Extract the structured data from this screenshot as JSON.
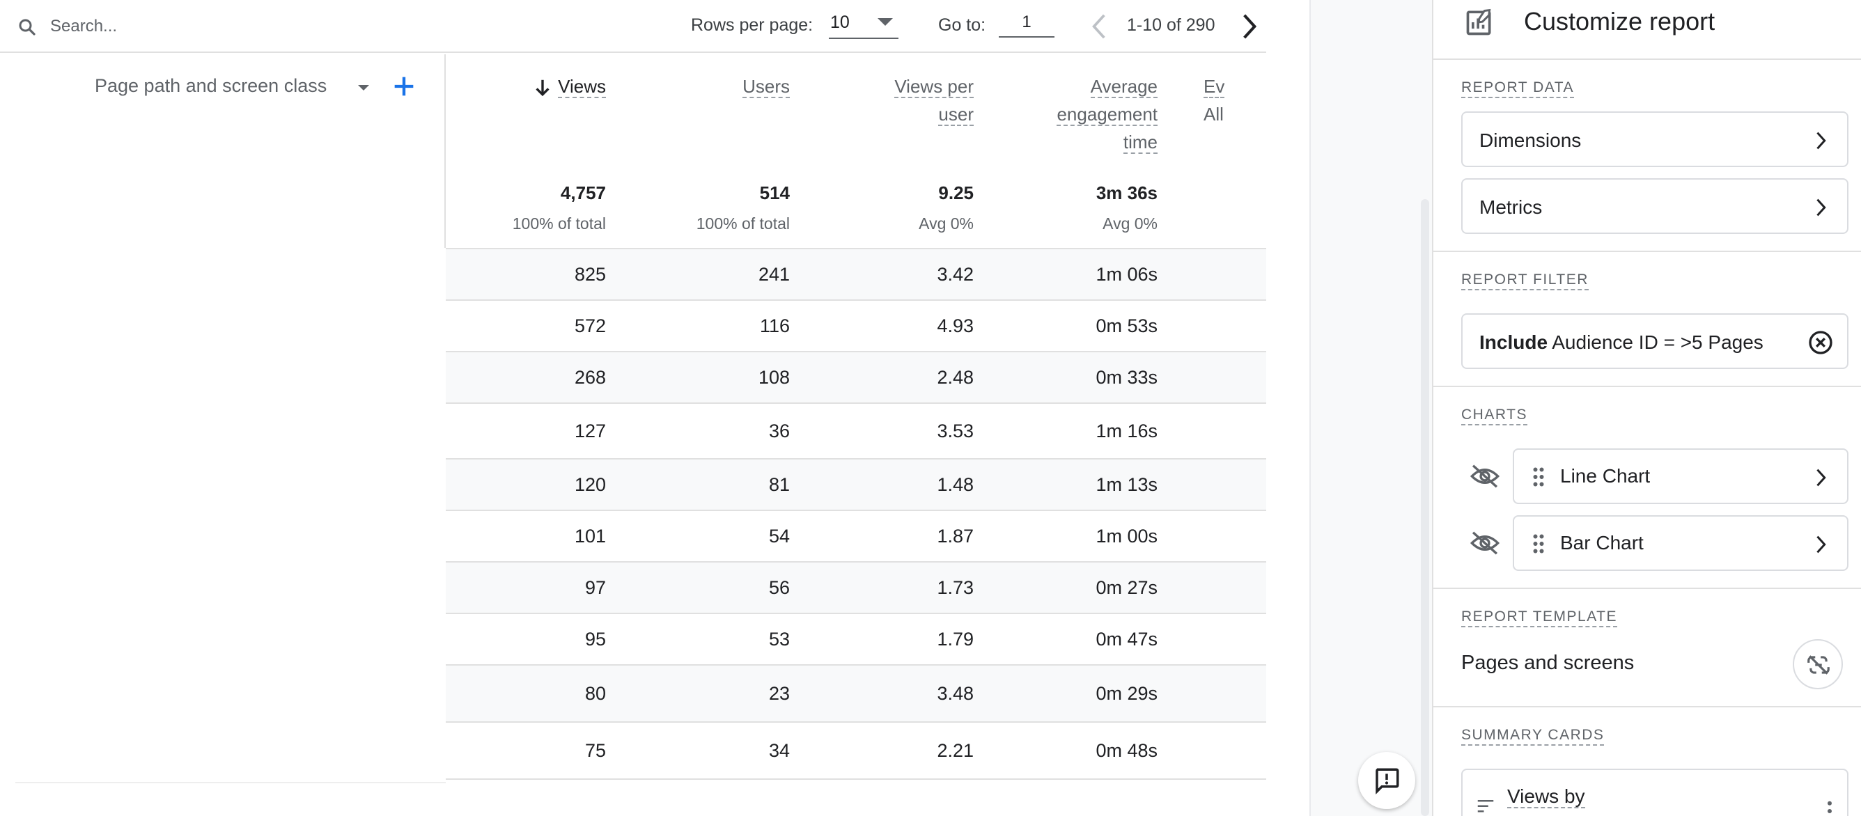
{
  "toolbar": {
    "search_placeholder": "Search...",
    "rows_per_page_label": "Rows per page:",
    "rows_per_page_value": "10",
    "goto_label": "Go to:",
    "goto_value": "1",
    "page_range": "1-10 of 290"
  },
  "dimension": {
    "label": "Page path and screen class"
  },
  "columns": [
    {
      "label_lines": [
        "Views"
      ],
      "total": "4,757",
      "pct": "100% of total",
      "sorted": true
    },
    {
      "label_lines": [
        "Users"
      ],
      "total": "514",
      "pct": "100% of total",
      "sorted": false
    },
    {
      "label_lines": [
        "Views per",
        "user"
      ],
      "total": "9.25",
      "pct": "Avg 0%",
      "sorted": false
    },
    {
      "label_lines": [
        "Average",
        "engagement",
        "time"
      ],
      "total": "3m 36s",
      "pct": "Avg 0%",
      "sorted": false
    },
    {
      "label_lines": [
        "Ev"
      ],
      "sub": "All",
      "total": "",
      "pct": "",
      "sorted": false
    }
  ],
  "rows": [
    {
      "views": "825",
      "users": "241",
      "vpu": "3.42",
      "aet": "1m 06s"
    },
    {
      "views": "572",
      "users": "116",
      "vpu": "4.93",
      "aet": "0m 53s"
    },
    {
      "views": "268",
      "users": "108",
      "vpu": "2.48",
      "aet": "0m 33s"
    },
    {
      "views": "127",
      "users": "36",
      "vpu": "3.53",
      "aet": "1m 16s"
    },
    {
      "views": "120",
      "users": "81",
      "vpu": "1.48",
      "aet": "1m 13s"
    },
    {
      "views": "101",
      "users": "54",
      "vpu": "1.87",
      "aet": "1m 00s"
    },
    {
      "views": "97",
      "users": "56",
      "vpu": "1.73",
      "aet": "0m 27s"
    },
    {
      "views": "95",
      "users": "53",
      "vpu": "1.79",
      "aet": "0m 47s"
    },
    {
      "views": "80",
      "users": "23",
      "vpu": "3.48",
      "aet": "0m 29s"
    },
    {
      "views": "75",
      "users": "34",
      "vpu": "2.21",
      "aet": "0m 48s"
    }
  ],
  "panel": {
    "title": "Customize report",
    "report_data_label": "REPORT DATA",
    "dimensions_label": "Dimensions",
    "metrics_label": "Metrics",
    "report_filter_label": "REPORT FILTER",
    "filter_bold": "Include",
    "filter_rest": "Audience ID = >5 Pages",
    "charts_label": "CHARTS",
    "line_chart_label": "Line Chart",
    "bar_chart_label": "Bar Chart",
    "report_template_label": "REPORT TEMPLATE",
    "template_name": "Pages and screens",
    "summary_cards_label": "SUMMARY CARDS",
    "summary_card_title": "Views by"
  },
  "icons": {
    "search": "search-icon",
    "prev": "chevron-left-icon",
    "next": "chevron-right-icon",
    "add": "plus-icon",
    "sort": "arrow-down-icon",
    "customize": "edit-report-icon",
    "clear": "close-circle-icon",
    "hidden": "eye-off-icon",
    "drag": "drag-handle-icon",
    "unlink": "unlink-icon",
    "feedback": "feedback-icon"
  },
  "colors": {
    "accent": "#1a73e8",
    "text": "#202124",
    "muted": "#5f6368",
    "divider": "#e0e0e0",
    "row_alt": "#f8f9fa"
  }
}
